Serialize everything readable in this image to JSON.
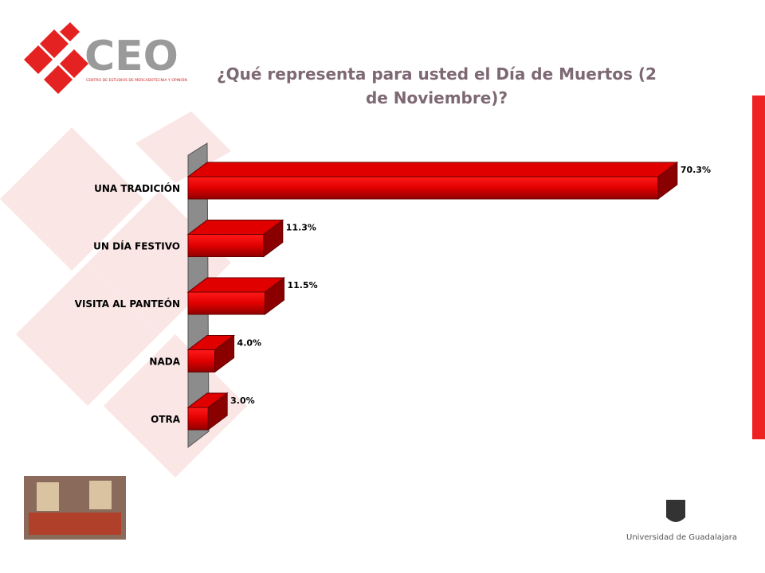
{
  "logo": {
    "name": "CEO",
    "subtitle": "CENTRO DE ESTUDIOS DE MERCADOTECNIA Y OPINIÓN"
  },
  "footer": {
    "institution": "Universidad de Guadalajara"
  },
  "chart_data": {
    "type": "bar3d",
    "orientation": "horizontal",
    "title": "¿Qué representa para usted el Día de Muertos (2 de Noviembre)?",
    "categories": [
      "UNA TRADICIÓN",
      "UN DÍA FESTIVO",
      "VISITA AL PANTEÓN",
      "NADA",
      "OTRA"
    ],
    "values": [
      70.3,
      11.3,
      11.5,
      4.0,
      3.0
    ],
    "value_labels": [
      "70.3%",
      "11.3%",
      "11.5%",
      "4.0%",
      "3.0%"
    ],
    "color": "#e00000"
  }
}
